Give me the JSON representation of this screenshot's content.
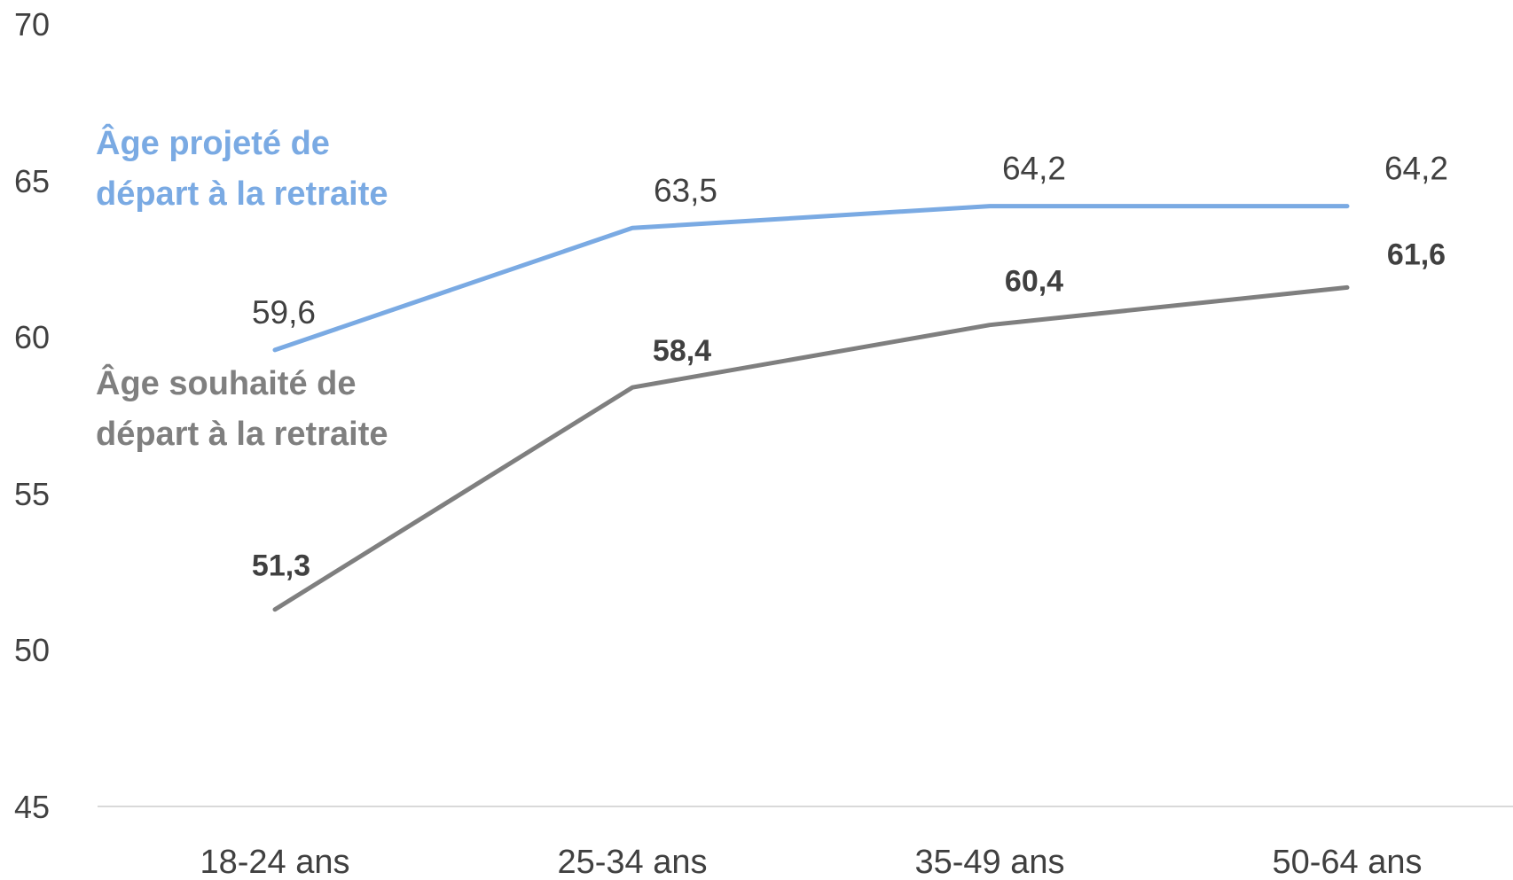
{
  "chart_data": {
    "type": "line",
    "categories": [
      "18-24 ans",
      "25-34 ans",
      "35-49 ans",
      "50-64 ans"
    ],
    "ylim": [
      45,
      70
    ],
    "yticks": [
      "70",
      "65",
      "60",
      "55",
      "50",
      "45"
    ],
    "grid": false,
    "series": [
      {
        "name_lines": [
          "Âge projeté de",
          "départ à la retraite"
        ],
        "values": [
          59.6,
          63.5,
          64.2,
          64.2
        ],
        "value_labels": [
          "59,6",
          "63,5",
          "64,2",
          "64,2"
        ],
        "color": "#7aaae3",
        "label_style": "regular"
      },
      {
        "name_lines": [
          "Âge souhaité de",
          "départ à la retraite"
        ],
        "values": [
          51.3,
          58.4,
          60.4,
          61.6
        ],
        "value_labels": [
          "51,3",
          "58,4",
          "60,4",
          "61,6"
        ],
        "color": "#7f7f7f",
        "label_style": "bold"
      }
    ]
  }
}
